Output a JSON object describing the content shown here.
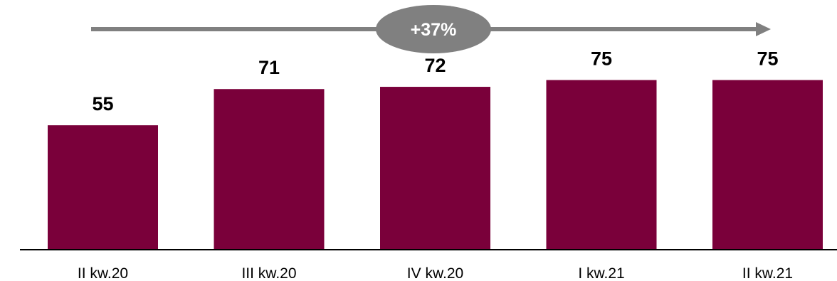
{
  "chart_data": {
    "type": "bar",
    "categories": [
      "II kw.20",
      "III kw.20",
      "IV kw.20",
      "I kw.21",
      "II kw.21"
    ],
    "values": [
      55,
      71,
      72,
      75,
      75
    ],
    "value_labels": [
      "55",
      "71",
      "72",
      "75",
      "75"
    ],
    "title": "",
    "xlabel": "",
    "ylabel": "",
    "ylim": [
      0,
      100
    ],
    "annotations": [
      {
        "type": "growth-arrow",
        "text": "+37%",
        "from": "II kw.20",
        "to": "II kw.21"
      }
    ],
    "colors": {
      "bar": "#7a003a",
      "arrow": "#808080",
      "badge": "#808080",
      "badge_text": "#ffffff",
      "axis": "#000000"
    }
  }
}
